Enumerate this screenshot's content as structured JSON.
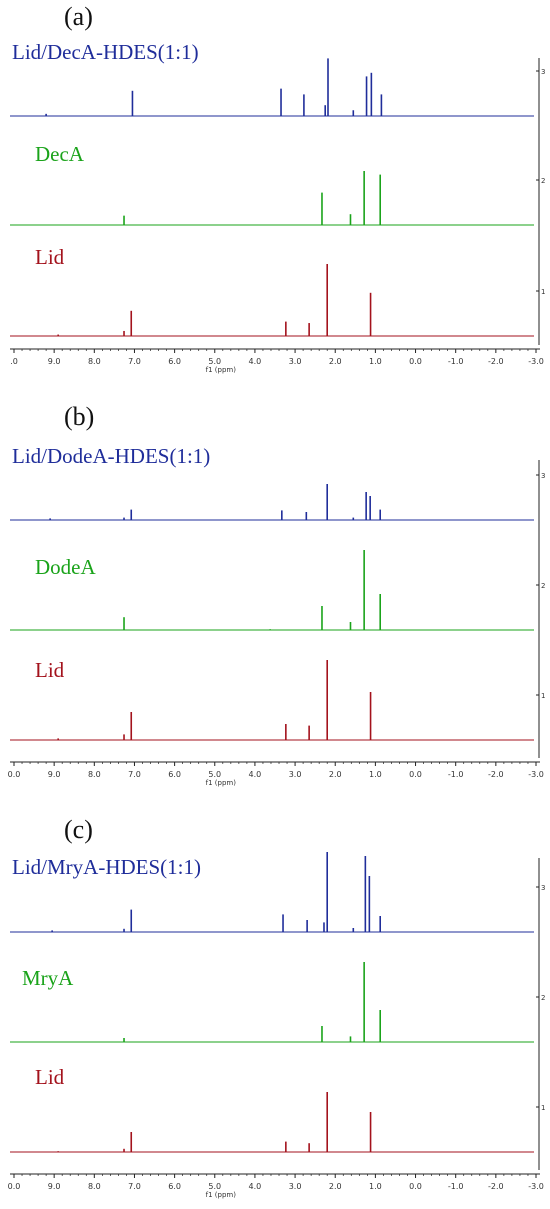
{
  "colors": {
    "blend": "#1f2d9a",
    "acid": "#1aa31a",
    "lid": "#a3121c",
    "axis": "#222222"
  },
  "chart_data": [
    {
      "type": "line",
      "panel_label": "(a)",
      "xlabel": "f1 (ppm)",
      "xlim": [
        10.0,
        -3.0
      ],
      "x_ticks": [
        ".0",
        "9.0",
        "8.0",
        "7.0",
        "6.0",
        "5.0",
        "4.0",
        "3.0",
        "2.0",
        "1.0",
        "0.0",
        "-1.0",
        "-2.0",
        "-3.0"
      ],
      "right_ticks": [
        "3",
        "2",
        "1"
      ],
      "series": [
        {
          "name": "Lid/DecA-HDES(1:1)",
          "color_key": "blend",
          "peaks": [
            [
              9.2,
              0.03
            ],
            [
              7.05,
              0.35
            ],
            [
              3.35,
              0.38
            ],
            [
              2.78,
              0.3
            ],
            [
              2.25,
              0.15
            ],
            [
              2.18,
              0.8
            ],
            [
              1.55,
              0.08
            ],
            [
              1.22,
              0.55
            ],
            [
              1.1,
              0.6
            ],
            [
              0.85,
              0.3
            ]
          ]
        },
        {
          "name": "DecA",
          "color_key": "acid",
          "peaks": [
            [
              7.26,
              0.13
            ],
            [
              2.33,
              0.45
            ],
            [
              1.62,
              0.15
            ],
            [
              1.28,
              0.75
            ],
            [
              0.88,
              0.7
            ]
          ]
        },
        {
          "name": "Lid",
          "color_key": "lid",
          "peaks": [
            [
              8.9,
              0.02
            ],
            [
              7.26,
              0.07
            ],
            [
              7.08,
              0.35
            ],
            [
              3.23,
              0.2
            ],
            [
              2.65,
              0.18
            ],
            [
              2.2,
              1.0
            ],
            [
              1.12,
              0.6
            ]
          ]
        }
      ]
    },
    {
      "type": "line",
      "panel_label": "(b)",
      "xlabel": "f1 (ppm)",
      "xlim": [
        10.0,
        -3.0
      ],
      "x_ticks": [
        "0.0",
        "9.0",
        "8.0",
        "7.0",
        "6.0",
        "5.0",
        "4.0",
        "3.0",
        "2.0",
        "1.0",
        "0.0",
        "-1.0",
        "-2.0",
        "-3.0"
      ],
      "right_ticks": [
        "3",
        "2",
        "1"
      ],
      "series": [
        {
          "name": "Lid/DodeA-HDES(1:1)",
          "color_key": "blend",
          "peaks": [
            [
              9.1,
              0.02
            ],
            [
              7.26,
              0.03
            ],
            [
              7.08,
              0.13
            ],
            [
              3.33,
              0.12
            ],
            [
              2.72,
              0.1
            ],
            [
              2.2,
              0.45
            ],
            [
              1.55,
              0.03
            ],
            [
              1.23,
              0.35
            ],
            [
              1.13,
              0.3
            ],
            [
              0.88,
              0.13
            ]
          ]
        },
        {
          "name": "DodeA",
          "color_key": "acid",
          "peaks": [
            [
              7.26,
              0.16
            ],
            [
              3.62,
              0.01
            ],
            [
              2.33,
              0.3
            ],
            [
              1.62,
              0.1
            ],
            [
              1.28,
              1.0
            ],
            [
              0.88,
              0.45
            ]
          ]
        },
        {
          "name": "Lid",
          "color_key": "lid",
          "peaks": [
            [
              8.9,
              0.02
            ],
            [
              7.26,
              0.07
            ],
            [
              7.08,
              0.35
            ],
            [
              3.23,
              0.2
            ],
            [
              2.65,
              0.18
            ],
            [
              2.2,
              1.0
            ],
            [
              1.12,
              0.6
            ]
          ]
        }
      ]
    },
    {
      "type": "line",
      "panel_label": "(c)",
      "xlabel": "f1 (ppm)",
      "xlim": [
        10.0,
        -3.0
      ],
      "x_ticks": [
        "0.0",
        "9.0",
        "8.0",
        "7.0",
        "6.0",
        "5.0",
        "4.0",
        "3.0",
        "2.0",
        "1.0",
        "0.0",
        "-1.0",
        "-2.0",
        "-3.0"
      ],
      "right_ticks": [
        "3",
        "2",
        "1"
      ],
      "series": [
        {
          "name": "Lid/MryA-HDES(1:1)",
          "color_key": "blend",
          "peaks": [
            [
              9.05,
              0.02
            ],
            [
              7.26,
              0.04
            ],
            [
              7.08,
              0.28
            ],
            [
              3.3,
              0.22
            ],
            [
              2.7,
              0.15
            ],
            [
              2.28,
              0.12
            ],
            [
              2.2,
              1.0
            ],
            [
              1.55,
              0.05
            ],
            [
              1.25,
              0.95
            ],
            [
              1.15,
              0.7
            ],
            [
              0.88,
              0.2
            ]
          ]
        },
        {
          "name": "MryA",
          "color_key": "acid",
          "peaks": [
            [
              7.26,
              0.05
            ],
            [
              2.33,
              0.2
            ],
            [
              1.62,
              0.07
            ],
            [
              1.28,
              1.0
            ],
            [
              0.88,
              0.4
            ]
          ]
        },
        {
          "name": "Lid",
          "color_key": "lid",
          "peaks": [
            [
              8.9,
              0.01
            ],
            [
              7.26,
              0.04
            ],
            [
              7.08,
              0.25
            ],
            [
              3.23,
              0.13
            ],
            [
              2.65,
              0.11
            ],
            [
              2.2,
              0.75
            ],
            [
              1.12,
              0.5
            ]
          ]
        }
      ]
    }
  ]
}
